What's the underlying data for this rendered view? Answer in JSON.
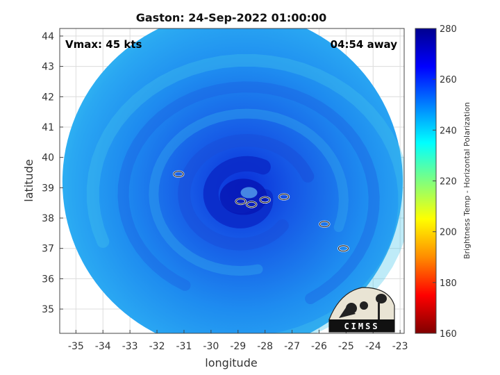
{
  "chart_data": {
    "type": "heatmap",
    "title": "Gaston: 24-Sep-2022 01:00:00",
    "xlabel": "longitude",
    "ylabel": "latitude",
    "xlim": [
      -35.6,
      -22.85
    ],
    "ylim": [
      34.2,
      44.25
    ],
    "x_ticks": [
      -35,
      -34,
      -33,
      -32,
      -31,
      -30,
      -29,
      -28,
      -27,
      -26,
      -25,
      -24,
      -23
    ],
    "y_ticks": [
      35,
      36,
      37,
      38,
      39,
      40,
      41,
      42,
      43,
      44
    ],
    "grid": true,
    "swath": {
      "center": [
        -29.2,
        39.2
      ],
      "radius_deg_lon": 6.3,
      "radius_deg_lat": 5.6
    },
    "storm_center": [
      -28.8,
      38.7
    ],
    "contours": [
      {
        "lon": -31.2,
        "lat": 39.45
      },
      {
        "lon": -28.9,
        "lat": 38.55
      },
      {
        "lon": -28.5,
        "lat": 38.45
      },
      {
        "lon": -28.0,
        "lat": 38.6
      },
      {
        "lon": -27.3,
        "lat": 38.7
      },
      {
        "lon": -25.8,
        "lat": 37.8
      },
      {
        "lon": -25.1,
        "lat": 37.0
      }
    ],
    "annotations": {
      "vmax": "Vmax: 45 kts",
      "time_away": "04:54 away"
    },
    "colorbar": {
      "label": "Brightness Temp - Horizontal Polarization",
      "min": 160,
      "max": 280,
      "ticks": [
        160,
        180,
        200,
        220,
        240,
        260,
        280
      ],
      "colors": [
        "#800000",
        "#ff0000",
        "#ff8c00",
        "#ffff00",
        "#7fff7f",
        "#00ffff",
        "#0080ff",
        "#0000ff",
        "#00008f"
      ]
    }
  },
  "logo": {
    "text": "CIMSS"
  }
}
